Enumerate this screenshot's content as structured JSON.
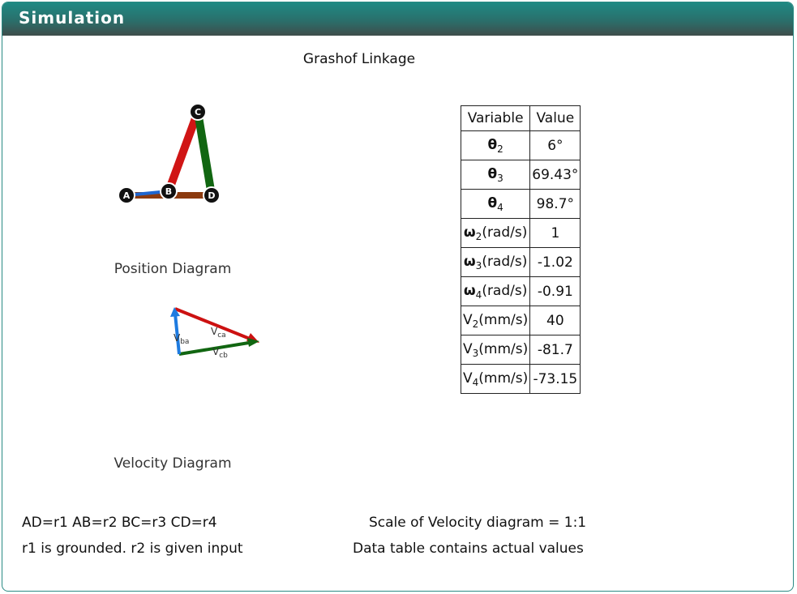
{
  "header": {
    "title": "Simulation"
  },
  "linkage_title": "Grashof Linkage",
  "position_diagram": {
    "caption": "Position Diagram",
    "joints": [
      "A",
      "B",
      "C",
      "D"
    ],
    "colors": {
      "r1": "#8b3a0f",
      "r2": "#1e66d0",
      "r3": "#d01515",
      "r4": "#116611"
    }
  },
  "velocity_diagram": {
    "caption": "Velocity Diagram",
    "labels": {
      "vba_main": "V",
      "vba_sub": "ba",
      "vca_main": "V",
      "vca_sub": "ca",
      "vcb_main": "V",
      "vcb_sub": "cb"
    },
    "colors": {
      "vba": "#1e7be0",
      "vca": "#cc1111",
      "vcb": "#116611"
    }
  },
  "table": {
    "header": {
      "variable": "Variable",
      "value": "Value"
    },
    "rows": [
      {
        "sym": "θ",
        "sub": "2",
        "unit": "",
        "value": "6°"
      },
      {
        "sym": "θ",
        "sub": "3",
        "unit": "",
        "value": "69.43°"
      },
      {
        "sym": "θ",
        "sub": "4",
        "unit": "",
        "value": "98.7°"
      },
      {
        "sym": "ω",
        "sub": "2",
        "unit": "(rad/s)",
        "value": "1"
      },
      {
        "sym": "ω",
        "sub": "3",
        "unit": "(rad/s)",
        "value": "-1.02"
      },
      {
        "sym": "ω",
        "sub": "4",
        "unit": "(rad/s)",
        "value": "-0.91"
      },
      {
        "sym": "V",
        "sub": "2",
        "unit": "(mm/s)",
        "value": "40"
      },
      {
        "sym": "V",
        "sub": "3",
        "unit": "(mm/s)",
        "value": "-81.7"
      },
      {
        "sym": "V",
        "sub": "4",
        "unit": "(mm/s)",
        "value": "-73.15"
      }
    ]
  },
  "footer": {
    "definitions": "AD=r1 AB=r2 BC=r3 CD=r4",
    "ground_note": "r1 is grounded. r2 is given input",
    "scale_note": "Scale of Velocity diagram = 1:1",
    "table_note": "Data table contains actual values"
  }
}
